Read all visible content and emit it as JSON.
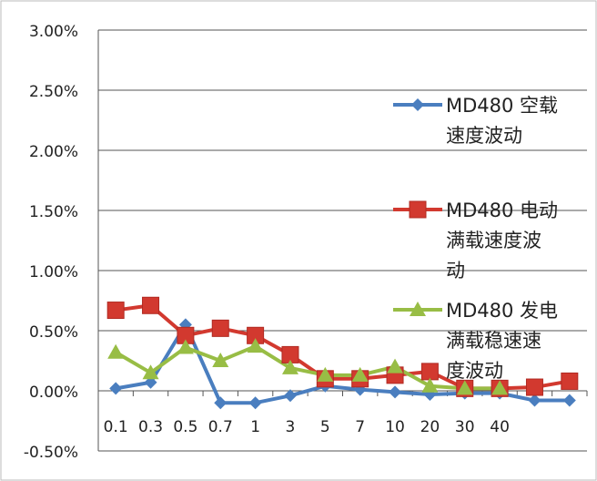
{
  "chart_data": {
    "type": "line",
    "title": "",
    "xlabel": "",
    "ylabel": "",
    "categories": [
      "0.1",
      "0.3",
      "0.5",
      "0.7",
      "1",
      "3",
      "5",
      "7",
      "10",
      "20",
      "30",
      "40",
      "",
      ""
    ],
    "ylim": [
      -0.005,
      0.03
    ],
    "yticks": [
      -0.005,
      0,
      0.005,
      0.01,
      0.015,
      0.02,
      0.025,
      0.03
    ],
    "ytick_labels": [
      "-0.50%",
      "0.00%",
      "0.50%",
      "1.00%",
      "1.50%",
      "2.00%",
      "2.50%",
      "3.00%"
    ],
    "grid": "horizontal",
    "legend_position": "right",
    "series": [
      {
        "name": "MD480 空载速度波动",
        "legend_lines": [
          "MD480 空载",
          "速度波动"
        ],
        "color": "#4a7ebf",
        "marker": "diamond",
        "values": [
          0.0002,
          0.0007,
          0.0055,
          -0.001,
          -0.001,
          -0.0004,
          0.0004,
          0.0001,
          -0.0001,
          -0.0003,
          -0.0002,
          -0.0002,
          -0.0008,
          -0.0008
        ]
      },
      {
        "name": "MD480 电动满载速度波动",
        "legend_lines": [
          "MD480 电动",
          "满载速度波",
          "动"
        ],
        "color": "#d2392f",
        "marker": "square",
        "values": [
          0.0067,
          0.0071,
          0.0046,
          0.0052,
          0.0046,
          0.003,
          0.001,
          0.001,
          0.0013,
          0.0016,
          0.0002,
          0.0002,
          0.0003,
          0.0008
        ]
      },
      {
        "name": "MD480 发电满载稳速速度波动",
        "legend_lines": [
          "MD480 发电",
          "满载稳速速",
          "度波动"
        ],
        "color": "#98bd45",
        "marker": "triangle",
        "values": [
          0.0032,
          0.0015,
          0.0036,
          0.0025,
          0.0037,
          0.0019,
          0.0013,
          0.0013,
          0.002,
          0.0004,
          0.0002,
          0.0002,
          null,
          null
        ]
      }
    ]
  }
}
